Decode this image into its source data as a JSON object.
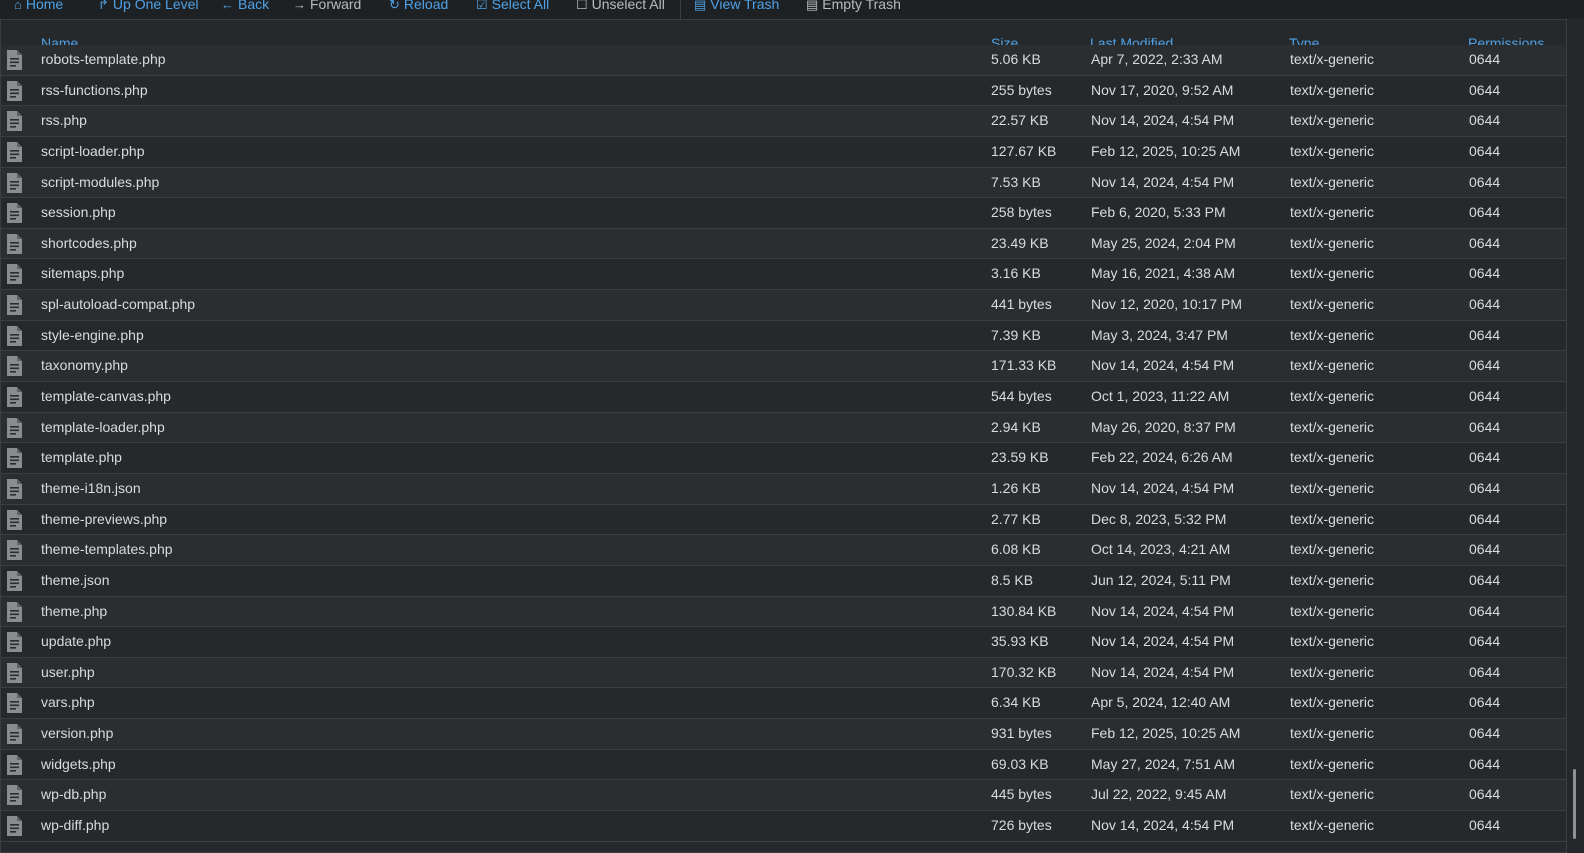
{
  "toolbar": {
    "home": "Home",
    "up_one_level": "Up One Level",
    "back": "Back",
    "forward": "Forward",
    "reload": "Reload",
    "select_all": "Select All",
    "unselect_all": "Unselect All",
    "view_trash": "View Trash",
    "empty_trash": "Empty Trash"
  },
  "table": {
    "headers": {
      "name": "Name",
      "size": "Size",
      "last_modified": "Last Modified",
      "type": "Type",
      "permissions": "Permissions"
    },
    "rows": [
      {
        "name": "robots-template.php",
        "size": "5.06 KB",
        "modified": "Apr 7, 2022, 2:33 AM",
        "type": "text/x-generic",
        "perms": "0644"
      },
      {
        "name": "rss-functions.php",
        "size": "255 bytes",
        "modified": "Nov 17, 2020, 9:52 AM",
        "type": "text/x-generic",
        "perms": "0644"
      },
      {
        "name": "rss.php",
        "size": "22.57 KB",
        "modified": "Nov 14, 2024, 4:54 PM",
        "type": "text/x-generic",
        "perms": "0644"
      },
      {
        "name": "script-loader.php",
        "size": "127.67 KB",
        "modified": "Feb 12, 2025, 10:25 AM",
        "type": "text/x-generic",
        "perms": "0644"
      },
      {
        "name": "script-modules.php",
        "size": "7.53 KB",
        "modified": "Nov 14, 2024, 4:54 PM",
        "type": "text/x-generic",
        "perms": "0644"
      },
      {
        "name": "session.php",
        "size": "258 bytes",
        "modified": "Feb 6, 2020, 5:33 PM",
        "type": "text/x-generic",
        "perms": "0644"
      },
      {
        "name": "shortcodes.php",
        "size": "23.49 KB",
        "modified": "May 25, 2024, 2:04 PM",
        "type": "text/x-generic",
        "perms": "0644"
      },
      {
        "name": "sitemaps.php",
        "size": "3.16 KB",
        "modified": "May 16, 2021, 4:38 AM",
        "type": "text/x-generic",
        "perms": "0644"
      },
      {
        "name": "spl-autoload-compat.php",
        "size": "441 bytes",
        "modified": "Nov 12, 2020, 10:17 PM",
        "type": "text/x-generic",
        "perms": "0644"
      },
      {
        "name": "style-engine.php",
        "size": "7.39 KB",
        "modified": "May 3, 2024, 3:47 PM",
        "type": "text/x-generic",
        "perms": "0644"
      },
      {
        "name": "taxonomy.php",
        "size": "171.33 KB",
        "modified": "Nov 14, 2024, 4:54 PM",
        "type": "text/x-generic",
        "perms": "0644"
      },
      {
        "name": "template-canvas.php",
        "size": "544 bytes",
        "modified": "Oct 1, 2023, 11:22 AM",
        "type": "text/x-generic",
        "perms": "0644"
      },
      {
        "name": "template-loader.php",
        "size": "2.94 KB",
        "modified": "May 26, 2020, 8:37 PM",
        "type": "text/x-generic",
        "perms": "0644"
      },
      {
        "name": "template.php",
        "size": "23.59 KB",
        "modified": "Feb 22, 2024, 6:26 AM",
        "type": "text/x-generic",
        "perms": "0644"
      },
      {
        "name": "theme-i18n.json",
        "size": "1.26 KB",
        "modified": "Nov 14, 2024, 4:54 PM",
        "type": "text/x-generic",
        "perms": "0644"
      },
      {
        "name": "theme-previews.php",
        "size": "2.77 KB",
        "modified": "Dec 8, 2023, 5:32 PM",
        "type": "text/x-generic",
        "perms": "0644"
      },
      {
        "name": "theme-templates.php",
        "size": "6.08 KB",
        "modified": "Oct 14, 2023, 4:21 AM",
        "type": "text/x-generic",
        "perms": "0644"
      },
      {
        "name": "theme.json",
        "size": "8.5 KB",
        "modified": "Jun 12, 2024, 5:11 PM",
        "type": "text/x-generic",
        "perms": "0644"
      },
      {
        "name": "theme.php",
        "size": "130.84 KB",
        "modified": "Nov 14, 2024, 4:54 PM",
        "type": "text/x-generic",
        "perms": "0644"
      },
      {
        "name": "update.php",
        "size": "35.93 KB",
        "modified": "Nov 14, 2024, 4:54 PM",
        "type": "text/x-generic",
        "perms": "0644"
      },
      {
        "name": "user.php",
        "size": "170.32 KB",
        "modified": "Nov 14, 2024, 4:54 PM",
        "type": "text/x-generic",
        "perms": "0644"
      },
      {
        "name": "vars.php",
        "size": "6.34 KB",
        "modified": "Apr 5, 2024, 12:40 AM",
        "type": "text/x-generic",
        "perms": "0644"
      },
      {
        "name": "version.php",
        "size": "931 bytes",
        "modified": "Feb 12, 2025, 10:25 AM",
        "type": "text/x-generic",
        "perms": "0644"
      },
      {
        "name": "widgets.php",
        "size": "69.03 KB",
        "modified": "May 27, 2024, 7:51 AM",
        "type": "text/x-generic",
        "perms": "0644"
      },
      {
        "name": "wp-db.php",
        "size": "445 bytes",
        "modified": "Jul 22, 2022, 9:45 AM",
        "type": "text/x-generic",
        "perms": "0644"
      },
      {
        "name": "wp-diff.php",
        "size": "726 bytes",
        "modified": "Nov 14, 2024, 4:54 PM",
        "type": "text/x-generic",
        "perms": "0644"
      }
    ]
  },
  "icons": {
    "file": "file-text-icon",
    "home": "home-icon",
    "up": "level-up-icon",
    "back": "arrow-left-icon",
    "forward": "arrow-right-icon",
    "reload": "refresh-icon",
    "select_all": "checkbox-checked-icon",
    "unselect_all": "checkbox-empty-icon",
    "view_trash": "trash-icon",
    "empty_trash": "trash-icon"
  },
  "colors": {
    "link": "#4ea1e6",
    "text": "#d9dbdc",
    "background": "#26292b",
    "toolbar": "#1e2123"
  }
}
